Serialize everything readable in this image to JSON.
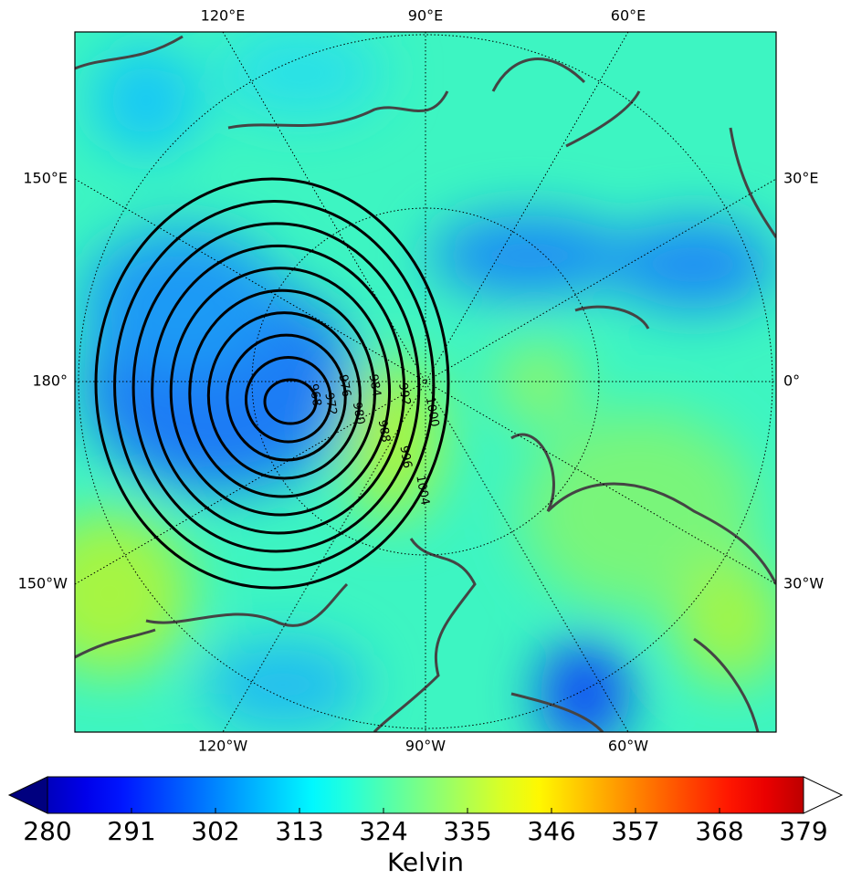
{
  "map": {
    "longitude_labels": {
      "top": [
        "120°E",
        "90°E",
        "60°E"
      ],
      "bottom": [
        "120°W",
        "90°W",
        "60°W"
      ],
      "left": [
        "150°E",
        "180°",
        "150°W"
      ],
      "right": [
        "30°E",
        "0°",
        "30°W"
      ]
    },
    "isobars": [
      968,
      972,
      976,
      980,
      984,
      988,
      992,
      996,
      1000,
      1004
    ],
    "colorbar": {
      "label": "Kelvin",
      "range": [
        280,
        379
      ],
      "ticks": [
        280,
        291,
        302,
        313,
        324,
        335,
        346,
        357,
        368,
        379
      ]
    }
  }
}
